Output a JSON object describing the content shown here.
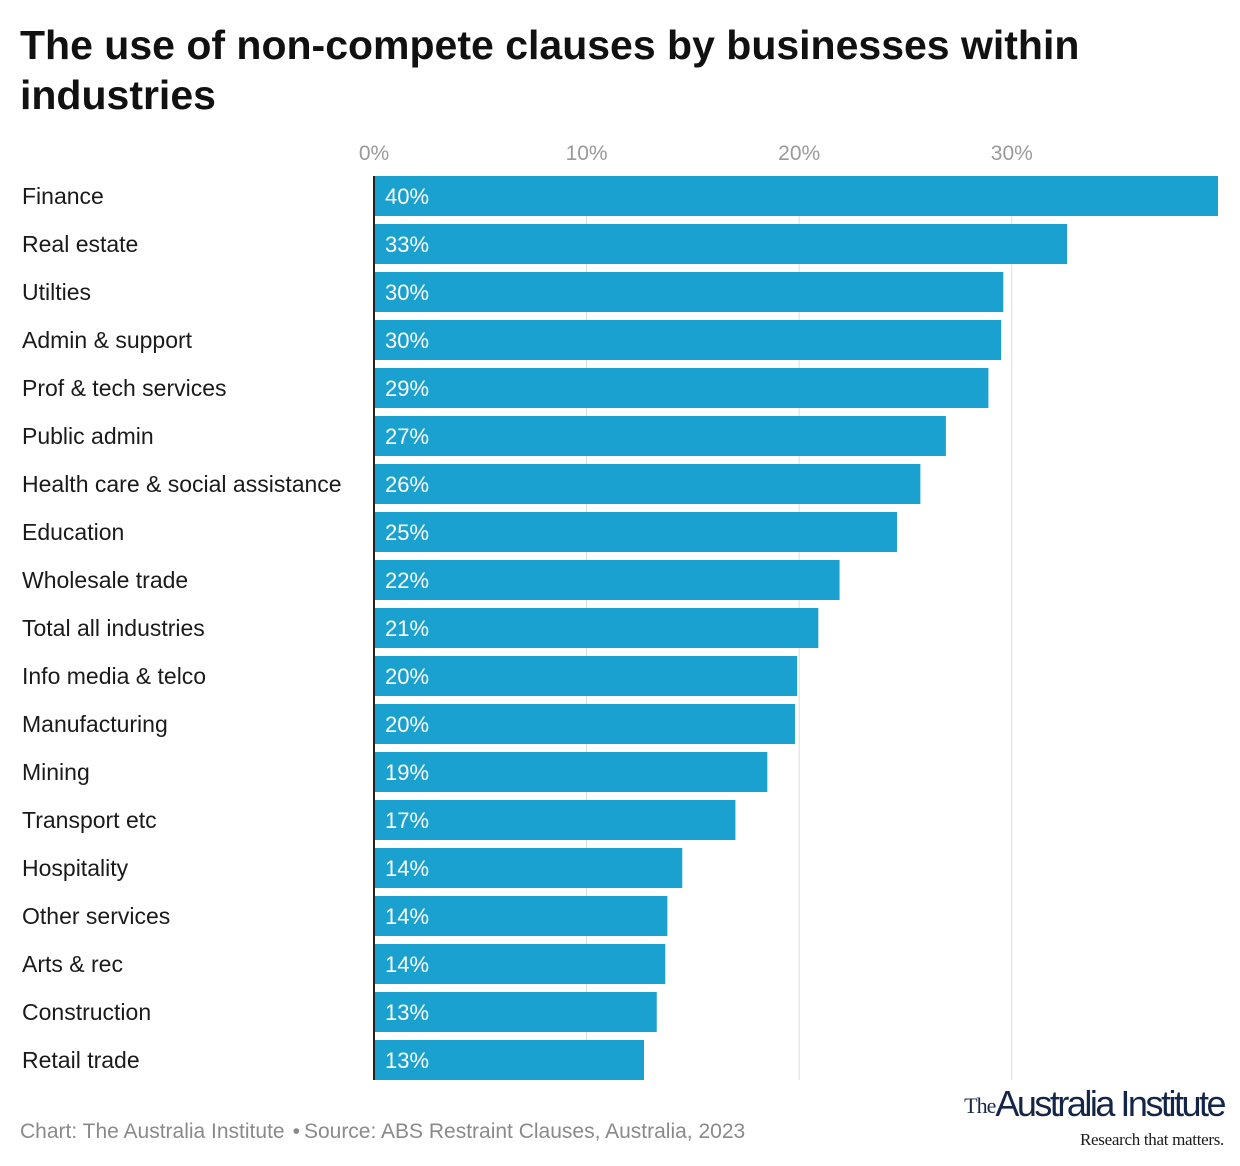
{
  "chart_data": {
    "type": "bar",
    "orientation": "horizontal",
    "title": "The use of non-compete clauses by businesses within industries",
    "categories": [
      "Finance",
      "Real estate",
      "Utilties",
      "Admin & support",
      "Prof & tech services",
      "Public admin",
      "Health care & social assistance",
      "Education",
      "Wholesale trade",
      "Total all industries",
      "Info media & telco",
      "Manufacturing",
      "Mining",
      "Transport etc",
      "Hospitality",
      "Other services",
      "Arts & rec",
      "Construction",
      "Retail trade"
    ],
    "values": [
      39.7,
      32.6,
      29.6,
      29.5,
      28.9,
      26.9,
      25.7,
      24.6,
      21.9,
      20.9,
      19.9,
      19.8,
      18.5,
      17.0,
      14.5,
      13.8,
      13.7,
      13.3,
      12.7
    ],
    "value_labels": [
      "40%",
      "33%",
      "30%",
      "30%",
      "29%",
      "27%",
      "26%",
      "25%",
      "22%",
      "21%",
      "20%",
      "20%",
      "19%",
      "17%",
      "14%",
      "14%",
      "14%",
      "13%",
      "13%"
    ],
    "x_ticks": [
      0,
      10,
      20,
      30
    ],
    "x_tick_labels": [
      "0%",
      "10%",
      "20%",
      "30%"
    ],
    "xlim": [
      0,
      39.7
    ],
    "x_axis_position": "top",
    "grid": true,
    "bar_color": "#1aa1cf"
  },
  "footer": {
    "credit": "Chart: The Australia Institute",
    "separator": "•",
    "source": "Source: ABS Restraint Clauses, Australia, 2023"
  },
  "logo": {
    "prefix": "The",
    "name": "Australia Institute",
    "tagline": "Research that matters."
  }
}
